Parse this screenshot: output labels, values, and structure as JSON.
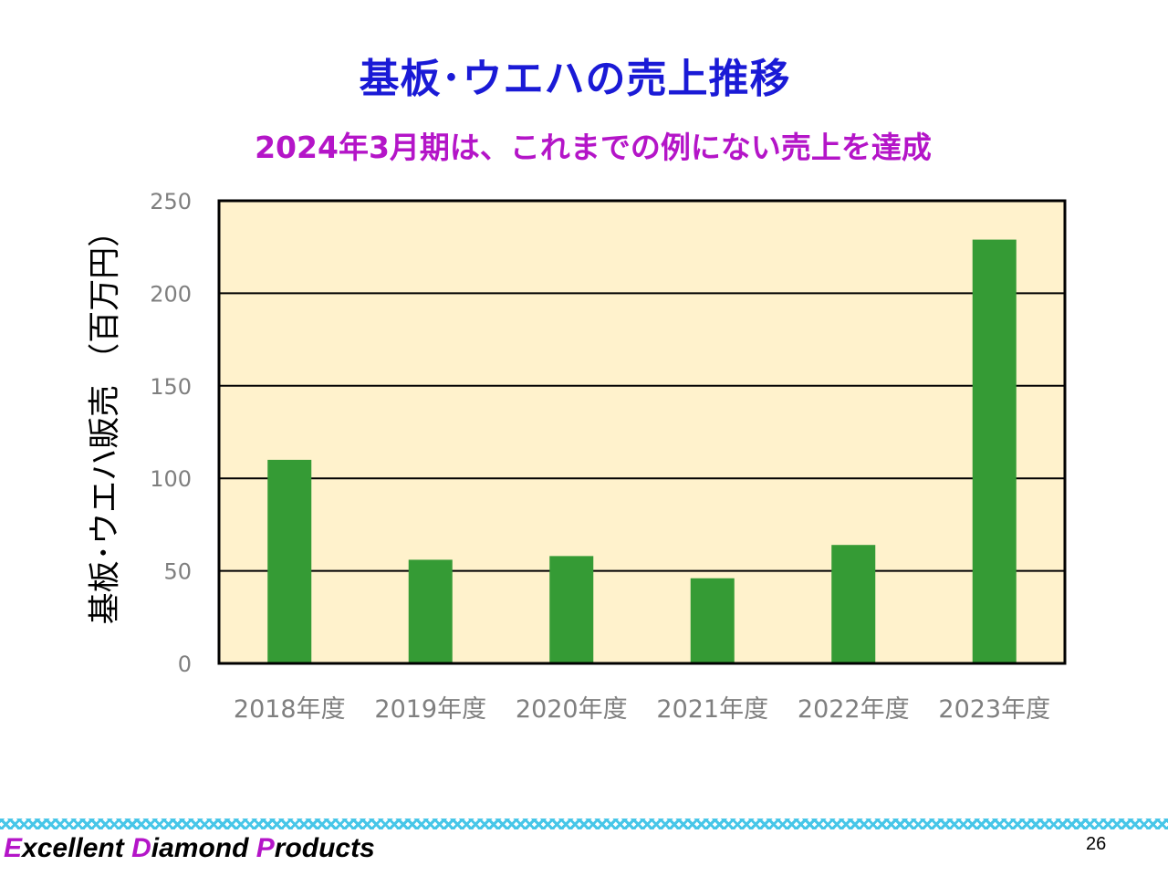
{
  "slide": {
    "title": "基板･ウエハの売上推移",
    "subtitle": "2024年3月期は、これまでの例にない売上を達成",
    "page_number": "26"
  },
  "brand": {
    "parts": [
      {
        "initial": "E",
        "rest": "xcellent "
      },
      {
        "initial": "D",
        "rest": "iamond "
      },
      {
        "initial": "P",
        "rest": "roducts"
      }
    ]
  },
  "colors": {
    "title": "#1a1ad6",
    "subtitle": "#b415c8",
    "bar": "#359b35",
    "plot_background": "#fff2cc",
    "brand_initial": "#b415c8",
    "footer_band": "#34c0e6"
  },
  "chart_data": {
    "type": "bar",
    "title": "",
    "xlabel": "",
    "ylabel": "基板･ウエハ販売 （百万円）",
    "categories": [
      "2018年度",
      "2019年度",
      "2020年度",
      "2021年度",
      "2022年度",
      "2023年度"
    ],
    "values": [
      110,
      56,
      58,
      46,
      64,
      229
    ],
    "ylim": [
      0,
      250
    ],
    "yticks": [
      0,
      50,
      100,
      150,
      200,
      250
    ],
    "grid": true,
    "legend": "none"
  }
}
